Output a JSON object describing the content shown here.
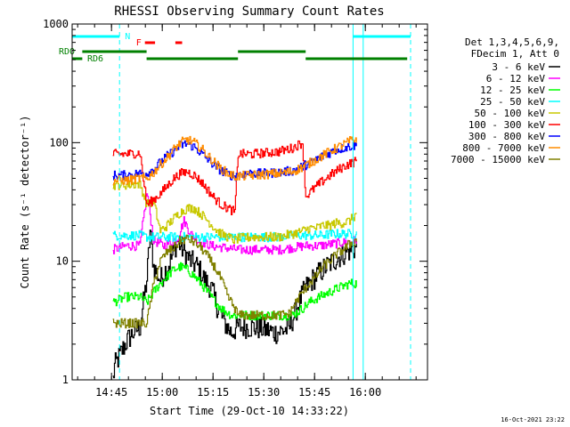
{
  "chart_data": {
    "type": "line",
    "title": "RHESSI Observing Summary Count Rates",
    "xlabel": "Start Time (29-Oct-10 14:33:22)",
    "ylabel": "Count Rate (s⁻¹ detector⁻¹)",
    "x_unit": "minutes since 14:33:22",
    "xlim": [
      0,
      105
    ],
    "ylim": [
      1,
      1000
    ],
    "yscale": "log",
    "x_ticks": [
      {
        "t": 11.63,
        "label": "14:45"
      },
      {
        "t": 26.63,
        "label": "15:00"
      },
      {
        "t": 41.63,
        "label": "15:15"
      },
      {
        "t": 56.63,
        "label": "15:30"
      },
      {
        "t": 71.63,
        "label": "15:45"
      },
      {
        "t": 86.63,
        "label": "16:00"
      }
    ],
    "y_ticks": [
      {
        "v": 1,
        "label": "1"
      },
      {
        "v": 10,
        "label": "10"
      },
      {
        "v": 100,
        "label": "100"
      },
      {
        "v": 1000,
        "label": "1000"
      }
    ],
    "legend_header": [
      "Det 1,3,4,5,6,9,",
      "FDecim 1, Att 0"
    ],
    "legend_position": "right",
    "timestamp": "16-Oct-2021 23:22",
    "flags": {
      "N_label": "N",
      "F_label": "F",
      "RD0_label": "RD0",
      "RD6_label": "RD6",
      "night_intervals": [
        [
          0,
          14
        ],
        [
          83,
          100
        ]
      ],
      "flare_dashes": [
        [
          21.5,
          24.5
        ],
        [
          30.5,
          32.5
        ]
      ],
      "rd0_segments": [
        [
          3,
          22
        ],
        [
          49,
          69
        ]
      ],
      "rd6_segments": [
        [
          0,
          3
        ],
        [
          22,
          49
        ],
        [
          69,
          99
        ]
      ],
      "saa_lines": [
        0,
        14,
        83,
        86,
        100
      ],
      "colors": {
        "N": "#00ffff",
        "F": "#ff0000",
        "RD": "#008000"
      }
    },
    "series": [
      {
        "name": "3 - 6 keV",
        "color": "#000000",
        "points": [
          [
            12,
            1
          ],
          [
            12.5,
            1.3
          ],
          [
            14,
            1.6
          ],
          [
            16,
            2.1
          ],
          [
            18,
            2.5
          ],
          [
            20,
            2.8
          ],
          [
            22,
            7
          ],
          [
            23,
            18
          ],
          [
            24,
            9
          ],
          [
            26,
            7
          ],
          [
            29,
            10
          ],
          [
            31,
            15
          ],
          [
            33,
            12
          ],
          [
            35,
            10
          ],
          [
            37,
            9
          ],
          [
            39,
            7
          ],
          [
            41,
            6
          ],
          [
            43,
            4
          ],
          [
            45,
            3
          ],
          [
            47,
            2.5
          ],
          [
            49,
            2.8
          ],
          [
            52,
            2.8
          ],
          [
            56,
            2.7
          ],
          [
            60,
            2.5
          ],
          [
            64,
            2.7
          ],
          [
            67,
            4.5
          ],
          [
            69,
            6
          ],
          [
            71,
            7
          ],
          [
            73,
            8
          ],
          [
            75,
            9
          ],
          [
            77,
            10
          ],
          [
            79,
            11
          ],
          [
            81,
            12
          ],
          [
            84,
            13
          ]
        ]
      },
      {
        "name": "6 - 12 keV",
        "color": "#ff00ff",
        "points": [
          [
            12,
            12.5
          ],
          [
            16,
            13.5
          ],
          [
            20,
            13.5
          ],
          [
            22,
            38
          ],
          [
            23,
            25
          ],
          [
            24,
            15
          ],
          [
            27,
            13.5
          ],
          [
            31,
            15.5
          ],
          [
            33,
            22
          ],
          [
            35,
            17
          ],
          [
            37,
            15
          ],
          [
            41,
            13.5
          ],
          [
            45,
            13
          ],
          [
            49,
            12.5
          ],
          [
            53,
            12.5
          ],
          [
            57,
            12.5
          ],
          [
            61,
            12.5
          ],
          [
            65,
            13
          ],
          [
            69,
            13.5
          ],
          [
            73,
            13.5
          ],
          [
            77,
            14
          ],
          [
            81,
            14.5
          ],
          [
            84,
            15
          ]
        ]
      },
      {
        "name": "12 - 25 keV",
        "color": "#00ff00",
        "points": [
          [
            12,
            4.5
          ],
          [
            16,
            5
          ],
          [
            20,
            5
          ],
          [
            22,
            4.5
          ],
          [
            24,
            5.5
          ],
          [
            26,
            6.5
          ],
          [
            28,
            7.5
          ],
          [
            30,
            8.5
          ],
          [
            32,
            9
          ],
          [
            34,
            8.5
          ],
          [
            36,
            7.5
          ],
          [
            38,
            6.5
          ],
          [
            41,
            5
          ],
          [
            44,
            4
          ],
          [
            47,
            3.5
          ],
          [
            49,
            3.5
          ],
          [
            53,
            3.5
          ],
          [
            57,
            3.5
          ],
          [
            61,
            3.5
          ],
          [
            65,
            3.5
          ],
          [
            68,
            4
          ],
          [
            70,
            4.5
          ],
          [
            73,
            5
          ],
          [
            76,
            5.5
          ],
          [
            79,
            6
          ],
          [
            82,
            6.5
          ],
          [
            84,
            6.5
          ]
        ]
      },
      {
        "name": "25 - 50 keV",
        "color": "#00ffff",
        "points": [
          [
            12,
            16.5
          ],
          [
            16,
            16.5
          ],
          [
            20,
            16.5
          ],
          [
            22,
            16
          ],
          [
            26,
            16
          ],
          [
            30,
            16
          ],
          [
            34,
            16
          ],
          [
            38,
            16
          ],
          [
            42,
            16
          ],
          [
            46,
            16
          ],
          [
            49,
            16
          ],
          [
            53,
            16
          ],
          [
            57,
            16
          ],
          [
            61,
            16
          ],
          [
            65,
            16.5
          ],
          [
            69,
            16.5
          ],
          [
            73,
            16.5
          ],
          [
            77,
            17
          ],
          [
            81,
            17
          ],
          [
            84,
            17
          ]
        ]
      },
      {
        "name": "50 - 100 keV",
        "color": "#c8c800",
        "points": [
          [
            12,
            44
          ],
          [
            16,
            44
          ],
          [
            20,
            45
          ],
          [
            22,
            30
          ],
          [
            24,
            32
          ],
          [
            26,
            18
          ],
          [
            28,
            20
          ],
          [
            30,
            23
          ],
          [
            32,
            26
          ],
          [
            34,
            28
          ],
          [
            36,
            28
          ],
          [
            38,
            25
          ],
          [
            40,
            22
          ],
          [
            42,
            19
          ],
          [
            44,
            17
          ],
          [
            46,
            16
          ],
          [
            48,
            15
          ],
          [
            49,
            15.5
          ],
          [
            53,
            16
          ],
          [
            57,
            16
          ],
          [
            61,
            16
          ],
          [
            65,
            17
          ],
          [
            68,
            18
          ],
          [
            70,
            19
          ],
          [
            72,
            19
          ],
          [
            74,
            20
          ],
          [
            76,
            20
          ],
          [
            78,
            21
          ],
          [
            80,
            21
          ],
          [
            82,
            22
          ],
          [
            84,
            25
          ]
        ]
      },
      {
        "name": "100 - 300 keV",
        "color": "#ff0000",
        "points": [
          [
            12,
            80
          ],
          [
            16,
            80
          ],
          [
            20,
            82
          ],
          [
            22,
            30
          ],
          [
            24,
            33
          ],
          [
            26,
            37
          ],
          [
            28,
            43
          ],
          [
            30,
            50
          ],
          [
            32,
            55
          ],
          [
            34,
            57
          ],
          [
            36,
            53
          ],
          [
            38,
            47
          ],
          [
            40,
            40
          ],
          [
            42,
            34
          ],
          [
            44,
            30
          ],
          [
            46,
            28
          ],
          [
            48,
            26
          ],
          [
            49,
            80
          ],
          [
            53,
            80
          ],
          [
            57,
            82
          ],
          [
            61,
            84
          ],
          [
            65,
            90
          ],
          [
            68,
            100
          ],
          [
            69,
            35
          ],
          [
            71,
            40
          ],
          [
            73,
            45
          ],
          [
            75,
            50
          ],
          [
            77,
            55
          ],
          [
            79,
            60
          ],
          [
            81,
            65
          ],
          [
            84,
            70
          ]
        ]
      },
      {
        "name": "300 - 800 keV",
        "color": "#0000ff",
        "points": [
          [
            12,
            53
          ],
          [
            16,
            53
          ],
          [
            20,
            55
          ],
          [
            22,
            55
          ],
          [
            24,
            60
          ],
          [
            26,
            68
          ],
          [
            28,
            77
          ],
          [
            30,
            85
          ],
          [
            32,
            95
          ],
          [
            34,
            98
          ],
          [
            36,
            92
          ],
          [
            38,
            82
          ],
          [
            40,
            72
          ],
          [
            42,
            64
          ],
          [
            44,
            58
          ],
          [
            46,
            54
          ],
          [
            48,
            52
          ],
          [
            49,
            54
          ],
          [
            53,
            55
          ],
          [
            57,
            55
          ],
          [
            61,
            56
          ],
          [
            65,
            58
          ],
          [
            68,
            63
          ],
          [
            70,
            67
          ],
          [
            72,
            72
          ],
          [
            74,
            77
          ],
          [
            76,
            82
          ],
          [
            78,
            87
          ],
          [
            80,
            90
          ],
          [
            82,
            93
          ],
          [
            84,
            95
          ]
        ]
      },
      {
        "name": "800 - 7000 keV",
        "color": "#ff8c00",
        "points": [
          [
            12,
            48
          ],
          [
            16,
            48
          ],
          [
            20,
            50
          ],
          [
            22,
            50
          ],
          [
            24,
            56
          ],
          [
            26,
            65
          ],
          [
            28,
            75
          ],
          [
            30,
            88
          ],
          [
            32,
            100
          ],
          [
            34,
            106
          ],
          [
            36,
            100
          ],
          [
            38,
            90
          ],
          [
            40,
            78
          ],
          [
            42,
            68
          ],
          [
            44,
            60
          ],
          [
            46,
            55
          ],
          [
            48,
            52
          ],
          [
            49,
            52
          ],
          [
            53,
            53
          ],
          [
            57,
            54
          ],
          [
            61,
            55
          ],
          [
            65,
            57
          ],
          [
            68,
            62
          ],
          [
            70,
            67
          ],
          [
            72,
            72
          ],
          [
            74,
            78
          ],
          [
            76,
            84
          ],
          [
            78,
            90
          ],
          [
            80,
            96
          ],
          [
            82,
            103
          ],
          [
            84,
            108
          ]
        ]
      },
      {
        "name": "7000 - 15000 keV",
        "color": "#808000",
        "points": [
          [
            12,
            3
          ],
          [
            16,
            3
          ],
          [
            20,
            3
          ],
          [
            22,
            3
          ],
          [
            24,
            6.5
          ],
          [
            26,
            10
          ],
          [
            28,
            12
          ],
          [
            30,
            13
          ],
          [
            32,
            15
          ],
          [
            34,
            15.5
          ],
          [
            36,
            14.5
          ],
          [
            38,
            13
          ],
          [
            40,
            11
          ],
          [
            42,
            9
          ],
          [
            44,
            7
          ],
          [
            46,
            5
          ],
          [
            48,
            4
          ],
          [
            49,
            3.5
          ],
          [
            53,
            3.5
          ],
          [
            57,
            3.5
          ],
          [
            61,
            3.5
          ],
          [
            64,
            3.6
          ],
          [
            66,
            4.5
          ],
          [
            68,
            5.5
          ],
          [
            70,
            6.5
          ],
          [
            72,
            7.5
          ],
          [
            74,
            9
          ],
          [
            76,
            10
          ],
          [
            78,
            11.5
          ],
          [
            80,
            12.5
          ],
          [
            82,
            14
          ],
          [
            84,
            15
          ]
        ]
      }
    ]
  }
}
